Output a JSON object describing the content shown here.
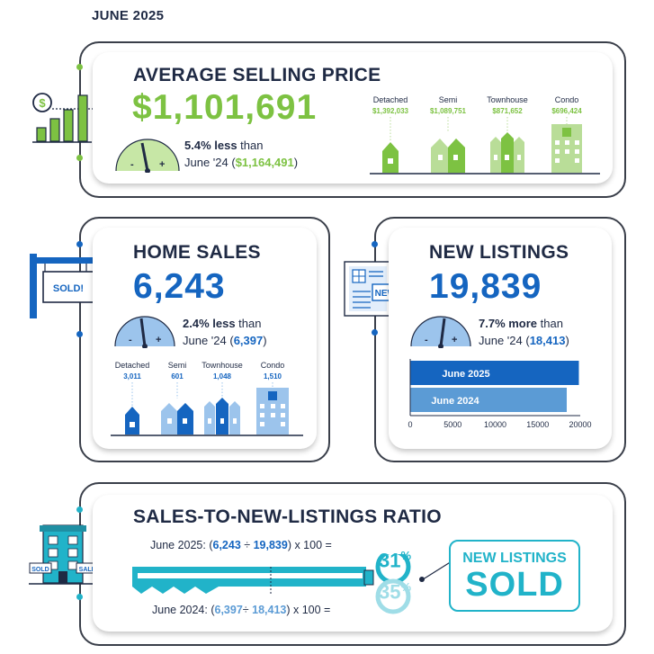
{
  "period": "JUNE 2025",
  "avg_price": {
    "title": "AVERAGE SELLING PRICE",
    "value": "$1,101,691",
    "change": "5.4% less",
    "than": " than",
    "prior_label": "June '24 (",
    "prior_value": "$1,164,491",
    "prior_close": ")",
    "types": [
      {
        "label": "Detached",
        "value": "$1,392,033"
      },
      {
        "label": "Semi",
        "value": "$1,089,751"
      },
      {
        "label": "Townhouse",
        "value": "$871,652"
      },
      {
        "label": "Condo",
        "value": "$696,424"
      }
    ],
    "color": "#7dc242"
  },
  "home_sales": {
    "title": "HOME SALES",
    "value": "6,243",
    "change": "2.4% less",
    "than": " than",
    "prior_label": "June '24 (",
    "prior_value": "6,397",
    "prior_close": ")",
    "sign_text": "SOLD!",
    "types": [
      {
        "label": "Detached",
        "value": "3,011"
      },
      {
        "label": "Semi",
        "value": "601"
      },
      {
        "label": "Townhouse",
        "value": "1,048"
      },
      {
        "label": "Condo",
        "value": "1,510"
      }
    ],
    "color": "#1565c0"
  },
  "new_listings": {
    "title": "NEW LISTINGS",
    "value": "19,839",
    "change": "7.7% more",
    "than": " than",
    "prior_label": "June '24 (",
    "prior_value": "18,413",
    "prior_close": ")",
    "paper_text": "NEW!",
    "chart_data": {
      "type": "bar",
      "orientation": "horizontal",
      "categories": [
        "June 2025",
        "June 2024"
      ],
      "values": [
        19839,
        18413
      ],
      "xlim": [
        0,
        20000
      ],
      "xticks": [
        "0",
        "5000",
        "10000",
        "15000",
        "20000"
      ],
      "colors": [
        "#1565c0",
        "#5b9bd5"
      ]
    }
  },
  "ratio": {
    "title": "SALES-TO-NEW-LISTINGS RATIO",
    "line_2025_pre": "June 2025: (",
    "line_2025_sales": "6,243",
    "line_2025_div": " ÷ ",
    "line_2025_list": "19,839",
    "line_2025_post": ") x 100 =",
    "line_2024_pre": "June 2024: (",
    "line_2024_sales": "6,397",
    "line_2024_div": "÷ ",
    "line_2024_list": "18,413",
    "line_2024_post": ") x 100 =",
    "pct_2025": "31",
    "pct_2024": "35",
    "pct_sign": "%",
    "tag_line1": "NEW LISTINGS",
    "tag_line2": "SOLD",
    "building_sign_left": "SOLD",
    "building_sign_right": "SALE",
    "color": "#21b3c9"
  }
}
